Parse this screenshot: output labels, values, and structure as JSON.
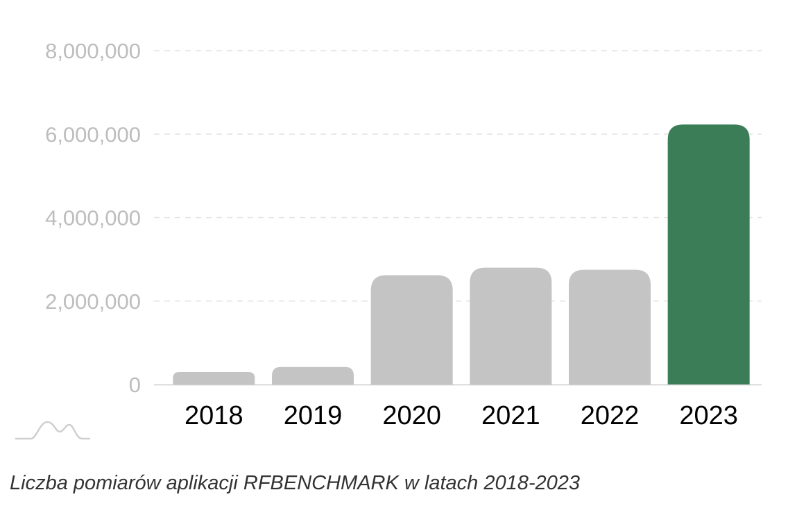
{
  "chart_data": {
    "type": "bar",
    "categories": [
      "2018",
      "2019",
      "2020",
      "2021",
      "2022",
      "2023"
    ],
    "values": [
      300000,
      420000,
      2620000,
      2800000,
      2750000,
      6230000
    ],
    "ylim": [
      0,
      8000000
    ],
    "yticks": [
      0,
      2000000,
      4000000,
      6000000,
      8000000
    ],
    "ytick_labels": [
      "0",
      "2,000,000",
      "4,000,000",
      "6,000,000",
      "8,000,000"
    ],
    "grid": true,
    "colors": {
      "default_bar": "#c4c4c4",
      "highlight_bar": "#3a7d57",
      "gridline": "#e2e2e2",
      "baseline": "#cccccc"
    },
    "highlight_category": "2023"
  },
  "caption": "Liczba pomiarów aplikacji RFBENCHMARK w latach 2018-2023",
  "logo": {
    "icon": "mountain-wave-logo-icon"
  }
}
